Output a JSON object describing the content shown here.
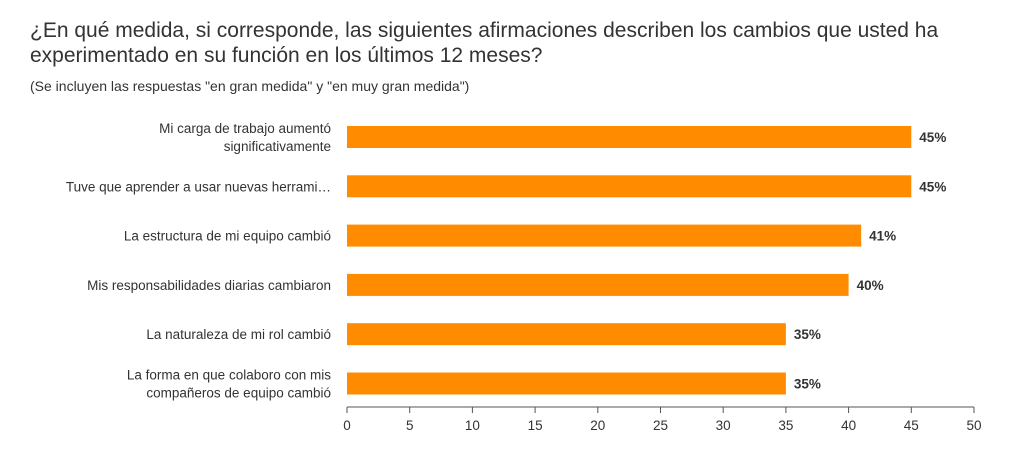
{
  "chart_data": {
    "type": "bar",
    "orientation": "horizontal",
    "title": "¿En qué medida, si corresponde, las siguientes afirmaciones describen los cambios que usted ha experimentado en su función en los últimos 12 meses?",
    "subtitle": "(Se incluyen las respuestas \"en gran medida\" y \"en muy gran medida\")",
    "categories": [
      [
        "Mi carga de trabajo aumentó",
        "significativamente"
      ],
      [
        "Tuve que aprender a usar nuevas herrami…"
      ],
      [
        "La estructura de mi equipo cambió"
      ],
      [
        "Mis responsabilidades diarias cambiaron"
      ],
      [
        "La naturaleza de mi rol cambió"
      ],
      [
        "La forma en que colaboro con mis",
        "compañeros de equipo cambió"
      ]
    ],
    "values": [
      45,
      45,
      41,
      40,
      35,
      35
    ],
    "value_labels": [
      "45%",
      "45%",
      "41%",
      "40%",
      "35%",
      "35%"
    ],
    "xlim": [
      0,
      50
    ],
    "xticks": [
      "0",
      "5",
      "10",
      "15",
      "20",
      "25",
      "30",
      "35",
      "40",
      "45",
      "50"
    ],
    "bar_color": "#ff8c00",
    "grid": false
  }
}
